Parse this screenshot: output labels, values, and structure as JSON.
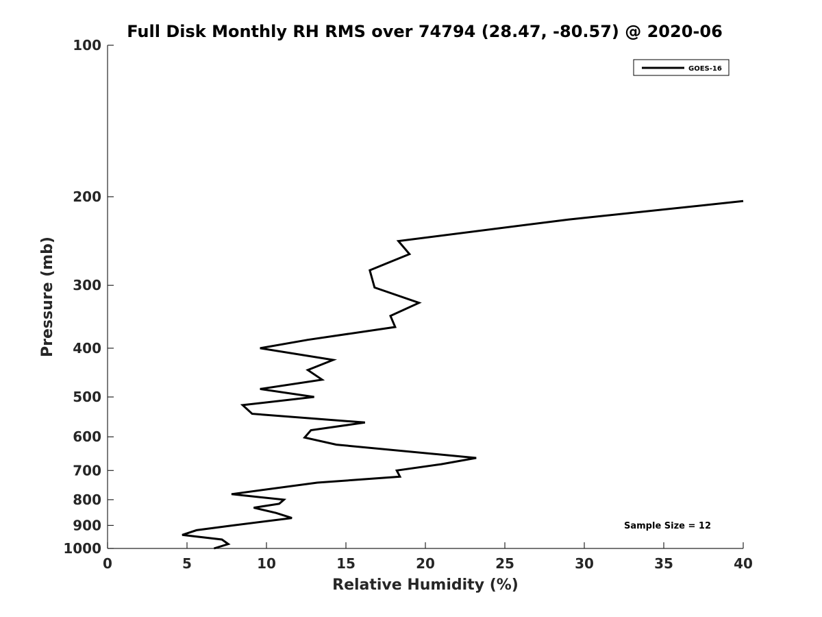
{
  "chart_data": {
    "type": "line",
    "title": "Full Disk Monthly RH RMS over 74794 (28.47, -80.57) @ 2020-06",
    "xlabel": "Relative Humidity (%)",
    "ylabel": "Pressure (mb)",
    "xlim": [
      0,
      40
    ],
    "ylim": [
      100,
      1000
    ],
    "y_scale": "log",
    "y_reversed": true,
    "x_ticks": [
      0,
      5,
      10,
      15,
      20,
      25,
      30,
      35,
      40
    ],
    "x_tick_labels": [
      "0",
      "5",
      "10",
      "15",
      "20",
      "25",
      "30",
      "35",
      "40"
    ],
    "y_ticks": [
      100,
      200,
      300,
      400,
      500,
      600,
      700,
      800,
      900,
      1000
    ],
    "y_tick_labels": [
      "100",
      "200",
      "300",
      "400",
      "500",
      "600",
      "700",
      "800",
      "900",
      "1000"
    ],
    "grid": false,
    "legend": {
      "placement": "top-right",
      "entries": [
        "GOES-16"
      ]
    },
    "annotation": "Sample Size = 12",
    "line_color": "#000000",
    "series": [
      {
        "name": "GOES-16",
        "points": [
          {
            "x": 40.0,
            "p": 204
          },
          {
            "x": 29.0,
            "p": 222
          },
          {
            "x": 18.3,
            "p": 245
          },
          {
            "x": 19.0,
            "p": 260
          },
          {
            "x": 16.5,
            "p": 280
          },
          {
            "x": 16.8,
            "p": 303
          },
          {
            "x": 19.6,
            "p": 325
          },
          {
            "x": 17.8,
            "p": 345
          },
          {
            "x": 18.1,
            "p": 363
          },
          {
            "x": 12.6,
            "p": 385
          },
          {
            "x": 9.6,
            "p": 400
          },
          {
            "x": 14.2,
            "p": 422
          },
          {
            "x": 12.6,
            "p": 442
          },
          {
            "x": 13.5,
            "p": 462
          },
          {
            "x": 9.6,
            "p": 482
          },
          {
            "x": 13.0,
            "p": 500
          },
          {
            "x": 8.5,
            "p": 519
          },
          {
            "x": 9.1,
            "p": 540
          },
          {
            "x": 16.2,
            "p": 562
          },
          {
            "x": 12.8,
            "p": 582
          },
          {
            "x": 12.4,
            "p": 602
          },
          {
            "x": 14.4,
            "p": 622
          },
          {
            "x": 23.2,
            "p": 661
          },
          {
            "x": 21.0,
            "p": 680
          },
          {
            "x": 18.2,
            "p": 700
          },
          {
            "x": 18.4,
            "p": 720
          },
          {
            "x": 13.2,
            "p": 740
          },
          {
            "x": 7.8,
            "p": 780
          },
          {
            "x": 11.1,
            "p": 800
          },
          {
            "x": 10.8,
            "p": 815
          },
          {
            "x": 9.2,
            "p": 830
          },
          {
            "x": 10.6,
            "p": 850
          },
          {
            "x": 11.6,
            "p": 870
          },
          {
            "x": 7.9,
            "p": 900
          },
          {
            "x": 5.6,
            "p": 920
          },
          {
            "x": 4.7,
            "p": 940
          },
          {
            "x": 7.2,
            "p": 960
          },
          {
            "x": 7.6,
            "p": 980
          },
          {
            "x": 6.7,
            "p": 1000
          }
        ]
      }
    ]
  }
}
